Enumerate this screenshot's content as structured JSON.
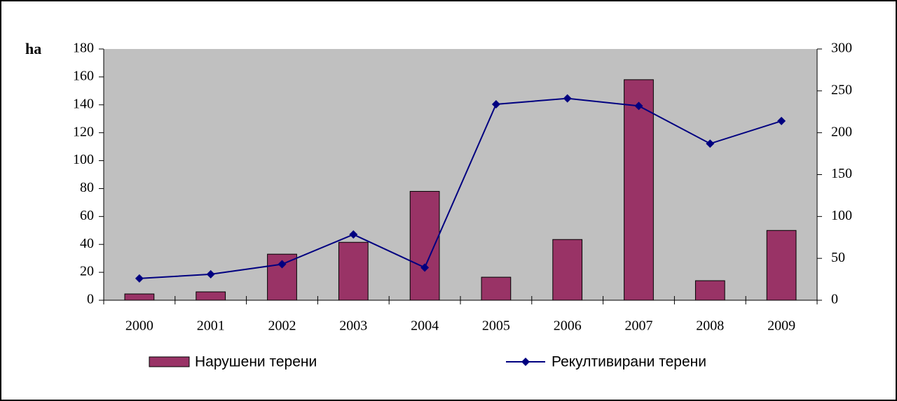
{
  "chart_data": {
    "type": "bar_line",
    "y_label": "ha",
    "categories": [
      "2000",
      "2001",
      "2002",
      "2003",
      "2004",
      "2005",
      "2006",
      "2007",
      "2008",
      "2009"
    ],
    "series": [
      {
        "name": "Нарушени терени",
        "type": "bar",
        "color": "#993366",
        "values": [
          4.5,
          6,
          33,
          41.5,
          78,
          16.5,
          43.5,
          158,
          14,
          50
        ]
      },
      {
        "name": "Рекултивирани терени",
        "type": "line",
        "axis": "y2",
        "color": "#000080",
        "values": [
          26,
          31,
          43,
          78.5,
          39,
          234,
          241,
          232,
          187,
          214
        ]
      }
    ],
    "ylim": [
      0,
      180
    ],
    "yticks": [
      0,
      20,
      40,
      60,
      80,
      100,
      120,
      140,
      160,
      180
    ],
    "y2lim": [
      0,
      300
    ],
    "y2ticks": [
      0,
      50,
      100,
      150,
      200,
      250,
      300
    ],
    "plot_background": "#c0c0c0"
  }
}
